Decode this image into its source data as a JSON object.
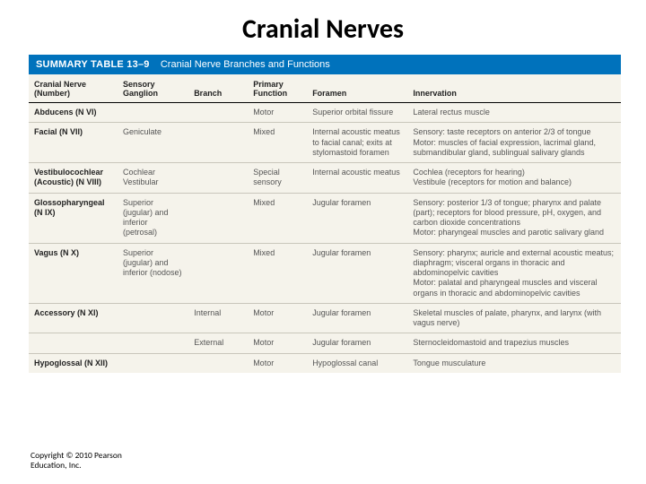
{
  "title": "Cranial Nerves",
  "banner": {
    "label": "SUMMARY TABLE 13–9",
    "heading": "Cranial Nerve Branches and Functions"
  },
  "columns": {
    "nerve": "Cranial Nerve\n(Number)",
    "ganglion": "Sensory\nGanglion",
    "branch": "Branch",
    "function": "Primary\nFunction",
    "foramen": "Foramen",
    "innervation": "Innervation"
  },
  "rows": [
    {
      "nerve": "Abducens (N VI)",
      "ganglion": "",
      "branch": "",
      "function": "Motor",
      "foramen": "Superior orbital fissure",
      "innervation": "Lateral rectus muscle"
    },
    {
      "nerve": "Facial (N VII)",
      "ganglion": "Geniculate",
      "branch": "",
      "function": "Mixed",
      "foramen": "Internal acoustic meatus to facial canal; exits at stylomastoid foramen",
      "innervation": "Sensory: taste receptors on anterior 2/3 of tongue\nMotor: muscles of facial expression, lacrimal gland, submandibular gland, sublingual salivary glands"
    },
    {
      "nerve": "Vestibulocochlear (Acoustic) (N VIII)",
      "ganglion": "Cochlear\nVestibular",
      "branch": "",
      "function": "Special sensory",
      "foramen": "Internal acoustic meatus",
      "innervation": "Cochlea (receptors for hearing)\nVestibule (receptors for motion and balance)"
    },
    {
      "nerve": "Glossopharyngeal (N IX)",
      "ganglion": "Superior (jugular) and inferior (petrosal)",
      "branch": "",
      "function": "Mixed",
      "foramen": "Jugular foramen",
      "innervation": "Sensory: posterior 1/3 of tongue; pharynx and palate (part); receptors for blood pressure, pH, oxygen, and carbon dioxide concentrations\nMotor: pharyngeal muscles and parotic salivary gland"
    },
    {
      "nerve": "Vagus (N X)",
      "ganglion": "Superior (jugular) and inferior (nodose)",
      "branch": "",
      "function": "Mixed",
      "foramen": "Jugular foramen",
      "innervation": "Sensory: pharynx; auricle and external acoustic meatus; diaphragm; visceral organs in thoracic and abdominopelvic cavities\nMotor: palatal and pharyngeal muscles and visceral organs in thoracic and abdominopelvic cavities"
    },
    {
      "nerve": "Accessory (N XI)",
      "ganglion": "",
      "branch": "Internal",
      "function": "Motor",
      "foramen": "Jugular foramen",
      "innervation": "Skeletal muscles of palate, pharynx, and larynx (with vagus nerve)"
    },
    {
      "nerve": "",
      "ganglion": "",
      "branch": "External",
      "function": "Motor",
      "foramen": "Jugular foramen",
      "innervation": "Sternocleidomastoid and trapezius muscles"
    },
    {
      "nerve": "Hypoglossal (N XII)",
      "ganglion": "",
      "branch": "",
      "function": "Motor",
      "foramen": "Hypoglossal canal",
      "innervation": "Tongue musculature"
    }
  ],
  "copyright": "Copyright © 2010 Pearson\nEducation, Inc.",
  "colors": {
    "banner_bg": "#0072bc",
    "table_bg": "#f5f3eb",
    "rule": "#c9c6bb",
    "header_rule": "#000000",
    "text_body": "#555555",
    "text_header": "#222222",
    "page_bg": "#ffffff"
  }
}
